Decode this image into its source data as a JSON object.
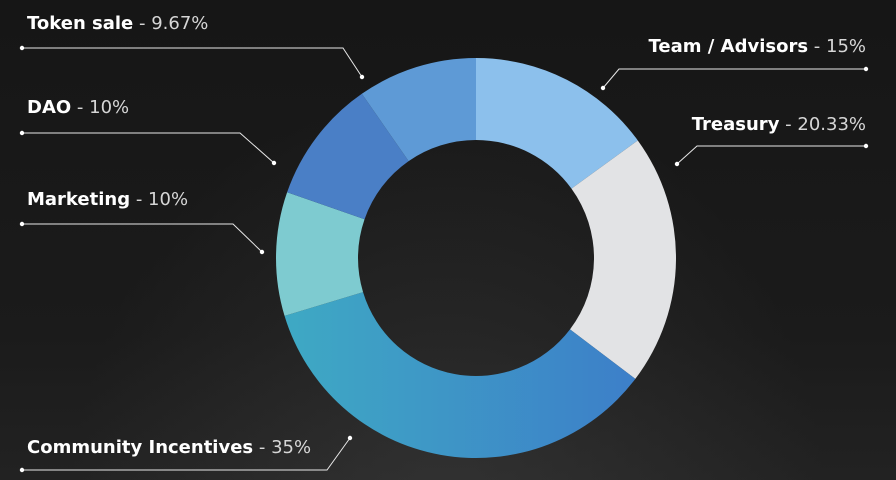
{
  "chart_data": {
    "type": "pie",
    "donut": true,
    "title": "",
    "slices": [
      {
        "name": "Team / Advisors",
        "value_label": "15%",
        "value": 15,
        "color": "#8cc0ec"
      },
      {
        "name": "Treasury",
        "value_label": "20.33%",
        "value": 20.33,
        "color": "#e2e3e5"
      },
      {
        "name": "Community Incentives",
        "value_label": "35%",
        "value": 35,
        "color": "#3ea9c4",
        "color_end": "#3d7fc9"
      },
      {
        "name": "Marketing",
        "value_label": "10%",
        "value": 10,
        "color": "#7ecbd0"
      },
      {
        "name": "DAO",
        "value_label": "10%",
        "value": 10,
        "color": "#4a7fc6"
      },
      {
        "name": "Token sale",
        "value_label": "9.67%",
        "value": 9.67,
        "color": "#5e9ad6"
      }
    ]
  }
}
